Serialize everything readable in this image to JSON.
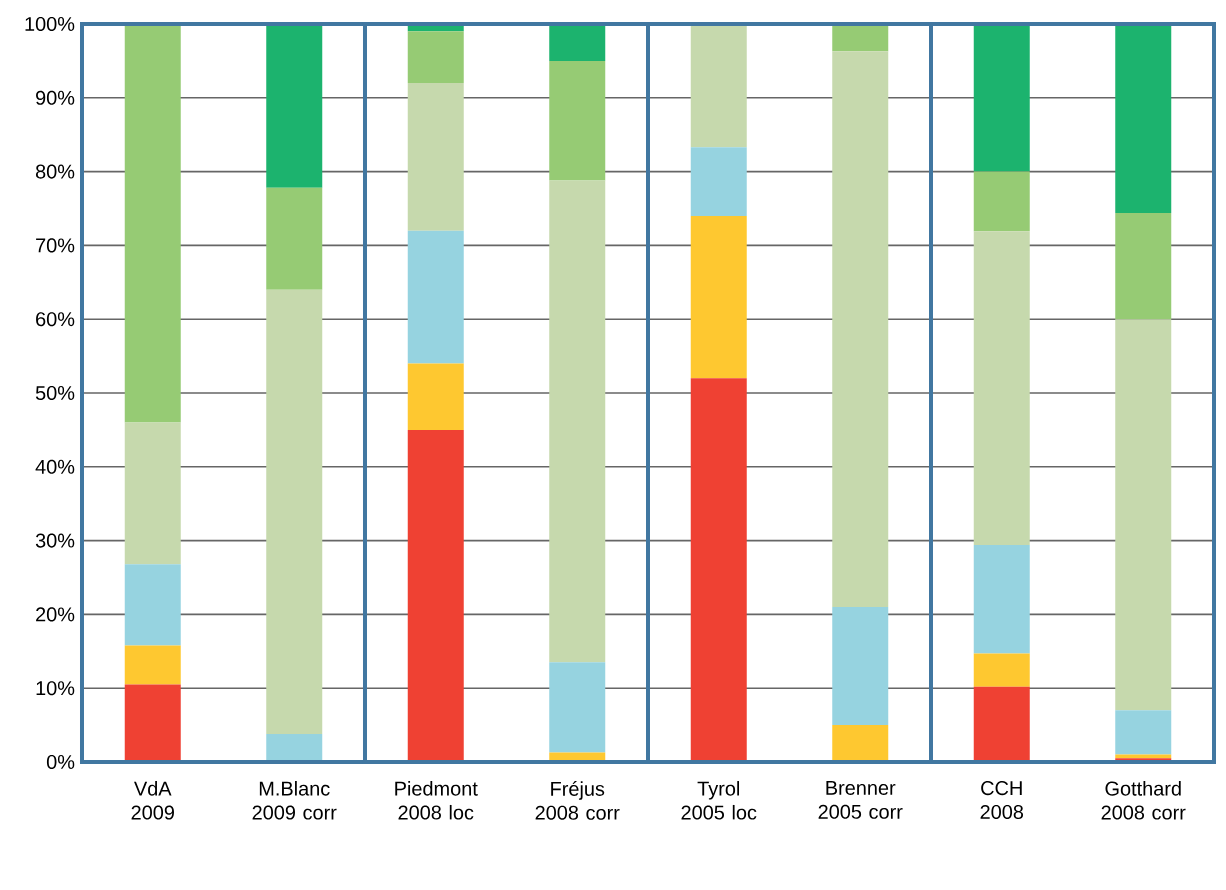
{
  "chart_data": {
    "type": "bar",
    "stacked": true,
    "categories": [
      "VdA 2009",
      "M.Blanc 2009 corr",
      "Piedmont 2008 loc",
      "Fréjus 2008 corr",
      "Tyrol 2005 loc",
      "Brenner 2005 corr",
      "CCH 2008",
      "Gotthard 2008 corr"
    ],
    "series": [
      {
        "color": "#ef4133",
        "values": [
          10.5,
          0,
          45,
          0,
          52,
          0,
          10.2,
          0.5
        ]
      },
      {
        "color": "#fec830",
        "values": [
          5.3,
          0,
          9,
          1.3,
          22,
          5,
          4.5,
          0.5
        ]
      },
      {
        "color": "#96d3e0",
        "values": [
          11,
          3.8,
          18,
          12.2,
          9.3,
          16,
          14.7,
          6
        ]
      },
      {
        "color": "#c6d9ad",
        "values": [
          19.2,
          60.2,
          20,
          65.3,
          16.7,
          75.3,
          42.5,
          53
        ]
      },
      {
        "color": "#96cb74",
        "values": [
          54,
          13.8,
          7,
          16.2,
          0,
          3.7,
          8.1,
          14.4
        ]
      },
      {
        "color": "#1cb36e",
        "values": [
          0,
          22.2,
          1,
          5,
          0,
          0,
          20,
          25.6
        ]
      }
    ],
    "ylim": [
      0,
      100
    ],
    "yticks": [
      {
        "value": 0,
        "label": "0%"
      },
      {
        "value": 10,
        "label": "10%"
      },
      {
        "value": 20,
        "label": "20%"
      },
      {
        "value": 30,
        "label": "30%"
      },
      {
        "value": 40,
        "label": "40%"
      },
      {
        "value": 50,
        "label": "50%"
      },
      {
        "value": 60,
        "label": "60%"
      },
      {
        "value": 70,
        "label": "70%"
      },
      {
        "value": 80,
        "label": "80%"
      },
      {
        "value": 90,
        "label": "90%"
      },
      {
        "value": 100,
        "label": "100%"
      }
    ],
    "grid": "y"
  }
}
